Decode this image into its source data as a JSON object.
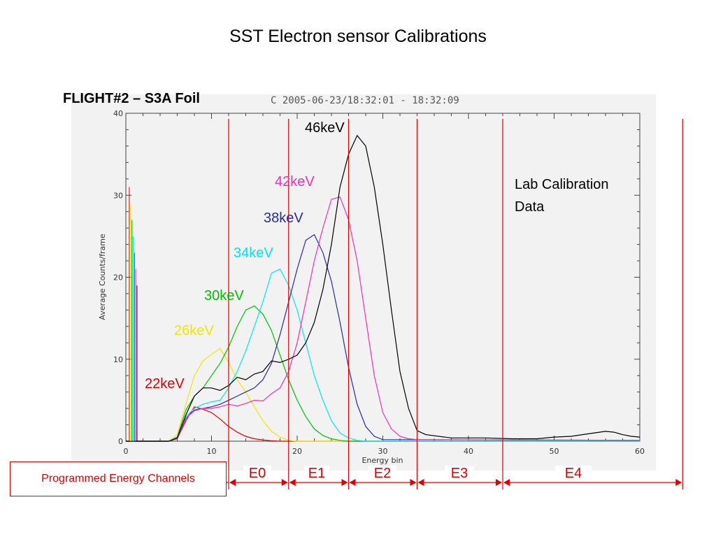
{
  "slide": {
    "title": "SST Electron sensor Calibrations",
    "flight_label": "FLIGHT#2 – S3A Foil",
    "plot_header": "C  2005-06-23/18:32:01 - 18:32:09",
    "lab_note_line1": "Lab Calibration",
    "lab_note_line2": "Data",
    "channels_box": "Programmed Energy Channels"
  },
  "channels": [
    {
      "label": "E0",
      "from": 12,
      "to": 19
    },
    {
      "label": "E1",
      "from": 19,
      "to": 26
    },
    {
      "label": "E2",
      "from": 26,
      "to": 34
    },
    {
      "label": "E3",
      "from": 34,
      "to": 44
    },
    {
      "label": "E4",
      "from": 44,
      "to": 65
    }
  ],
  "chart_data": {
    "type": "line",
    "title": "",
    "xlabel": "Energy bin",
    "ylabel": "Average Counts/frame",
    "xlim": [
      0,
      60
    ],
    "ylim": [
      0,
      40
    ],
    "xticks": [
      0,
      10,
      20,
      30,
      40,
      50,
      60
    ],
    "yticks": [
      0,
      10,
      20,
      30,
      40
    ],
    "grid": false,
    "channel_boundaries": [
      12,
      19,
      26,
      34,
      44,
      65
    ],
    "series": [
      {
        "name": "22keV",
        "color": "#e00000",
        "x": [
          0,
          5,
          6,
          7,
          8,
          9,
          10,
          11,
          12,
          13,
          14,
          15,
          16,
          17,
          18,
          19,
          20,
          60
        ],
        "y": [
          0,
          0,
          0.3,
          2.5,
          4.2,
          3.9,
          3.5,
          2.7,
          1.8,
          1.1,
          0.6,
          0.3,
          0.15,
          0.05,
          0,
          0,
          0,
          0
        ]
      },
      {
        "name": "26keV",
        "color": "#f2e600",
        "x": [
          0,
          5,
          6,
          7,
          8,
          9,
          10,
          11,
          12,
          13,
          14,
          15,
          16,
          17,
          18,
          19,
          20,
          60
        ],
        "y": [
          0,
          0,
          0.8,
          4.5,
          8.0,
          9.8,
          10.6,
          11.3,
          9.6,
          7.5,
          6.0,
          4.2,
          2.5,
          1.2,
          0.5,
          0.1,
          0,
          0
        ]
      },
      {
        "name": "30keV",
        "color": "#00c000",
        "x": [
          0,
          5,
          6,
          7,
          8,
          9,
          10,
          11,
          12,
          13,
          14,
          15,
          16,
          17,
          18,
          19,
          20,
          21,
          22,
          23,
          24,
          25,
          26,
          60
        ],
        "y": [
          0,
          0,
          0.5,
          3.8,
          5.5,
          6.5,
          8.0,
          9.5,
          11.5,
          14.0,
          16.0,
          16.5,
          15.5,
          13.5,
          10.5,
          7.5,
          5.0,
          3.0,
          1.5,
          0.7,
          0.3,
          0.1,
          0,
          0
        ]
      },
      {
        "name": "34keV",
        "color": "#00e5f0",
        "x": [
          0,
          5,
          6,
          7,
          8,
          9,
          10,
          11,
          12,
          13,
          14,
          15,
          16,
          17,
          18,
          19,
          20,
          21,
          22,
          23,
          24,
          25,
          26,
          27,
          28,
          60
        ],
        "y": [
          0,
          0,
          0.3,
          3.0,
          4.0,
          4.5,
          4.8,
          5.0,
          6.5,
          8.5,
          11.0,
          14.0,
          17.0,
          20.5,
          21.0,
          19.0,
          16.0,
          12.0,
          8.0,
          5.0,
          2.5,
          1.0,
          0.4,
          0.1,
          0,
          0
        ]
      },
      {
        "name": "38keV",
        "color": "#2a2aa5",
        "x": [
          0,
          5,
          6,
          7,
          8,
          9,
          10,
          11,
          12,
          13,
          14,
          15,
          16,
          17,
          18,
          19,
          20,
          21,
          22,
          23,
          24,
          25,
          26,
          27,
          28,
          29,
          30,
          60
        ],
        "y": [
          0,
          0,
          0.3,
          2.8,
          3.8,
          4.0,
          4.2,
          4.5,
          5.0,
          5.5,
          6.0,
          6.5,
          7.5,
          9.5,
          13.0,
          17.0,
          21.0,
          24.5,
          25.2,
          23.0,
          19.5,
          14.5,
          9.0,
          4.5,
          1.8,
          0.6,
          0.2,
          0.1
        ]
      },
      {
        "name": "42keV",
        "color": "#f030b0",
        "x": [
          0,
          5,
          6,
          7,
          8,
          9,
          10,
          11,
          12,
          13,
          14,
          15,
          16,
          17,
          18,
          19,
          20,
          21,
          22,
          23,
          24,
          25,
          26,
          27,
          28,
          29,
          30,
          31,
          32,
          33,
          34,
          60
        ],
        "y": [
          0,
          0,
          0.3,
          2.8,
          3.7,
          4.0,
          4.0,
          4.2,
          4.5,
          4.3,
          4.6,
          5.0,
          4.9,
          5.8,
          6.5,
          8.5,
          12.0,
          17.0,
          22.0,
          26.0,
          29.5,
          29.8,
          27.0,
          22.0,
          15.0,
          8.0,
          3.5,
          1.5,
          0.6,
          0.3,
          0.2,
          0.1
        ]
      },
      {
        "name": "46keV",
        "color": "#000000",
        "x": [
          0,
          5,
          6,
          7,
          8,
          9,
          10,
          11,
          12,
          13,
          14,
          15,
          16,
          17,
          18,
          19,
          20,
          21,
          22,
          23,
          24,
          25,
          26,
          27,
          28,
          29,
          30,
          31,
          32,
          33,
          34,
          35,
          38,
          42,
          45,
          48,
          50,
          52,
          54,
          56,
          57,
          58,
          59,
          60
        ],
        "y": [
          0,
          0,
          0.4,
          3.2,
          5.5,
          6.5,
          6.5,
          6.2,
          6.8,
          7.8,
          7.5,
          8.2,
          8.5,
          9.8,
          9.6,
          10.0,
          10.5,
          12.0,
          14.5,
          18.5,
          24.0,
          31.0,
          35.0,
          37.3,
          36.0,
          31.0,
          24.0,
          16.0,
          8.5,
          4.0,
          1.3,
          0.8,
          0.4,
          0.4,
          0.3,
          0.3,
          0.5,
          0.6,
          0.9,
          1.2,
          1.1,
          0.8,
          0.6,
          0.5
        ]
      }
    ]
  }
}
